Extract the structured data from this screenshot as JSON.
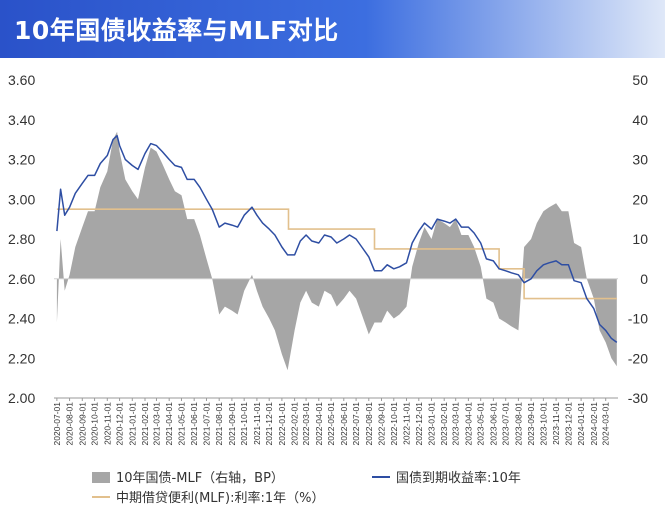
{
  "title": "10年国债收益率与MLF对比",
  "colors": {
    "title_bg": "#2f5cd6",
    "yield_line": "#2e4ea3",
    "mlf_line": "#e2c08d",
    "spread_area": "#a6a6a6"
  },
  "chart_data": {
    "type": "line",
    "title": "10年国债收益率与MLF对比",
    "y_left": {
      "min": 2.0,
      "max": 3.6,
      "ticks": [
        "2.00",
        "2.20",
        "2.40",
        "2.60",
        "2.80",
        "3.00",
        "3.20",
        "3.40",
        "3.60"
      ]
    },
    "y_right": {
      "min": -30,
      "max": 50,
      "ticks": [
        "-30",
        "-20",
        "-10",
        "0",
        "10",
        "20",
        "30",
        "40",
        "50"
      ]
    },
    "x_ticks": [
      "2020-07-01",
      "2020-08-01",
      "2020-09-01",
      "2020-10-01",
      "2020-11-01",
      "2020-12-01",
      "2021-01-01",
      "2021-02-01",
      "2021-03-01",
      "2021-04-01",
      "2021-05-01",
      "2021-06-01",
      "2021-07-01",
      "2021-08-01",
      "2021-09-01",
      "2021-10-01",
      "2021-11-01",
      "2021-12-01",
      "2022-01-01",
      "2022-02-01",
      "2022-03-01",
      "2022-04-01",
      "2022-05-01",
      "2022-06-01",
      "2022-07-01",
      "2022-08-01",
      "2022-09-01",
      "2022-10-01",
      "2022-11-01",
      "2022-12-01",
      "2023-01-01",
      "2023-02-01",
      "2023-03-01",
      "2023-04-01",
      "2023-05-01",
      "2023-06-01",
      "2023-07-01",
      "2023-08-01",
      "2023-09-01",
      "2023-10-01",
      "2023-11-01",
      "2023-12-01",
      "2024-01-01",
      "2024-02-01",
      "2024-03-01"
    ],
    "grid": false,
    "legend": [
      {
        "label": "10年国债-MLF（右轴，BP）",
        "kind": "area"
      },
      {
        "label": "国债到期收益率:10年",
        "kind": "line"
      },
      {
        "label": "中期借贷便利(MLF):利率:1年（%）",
        "kind": "line"
      }
    ],
    "legend_position": "bottom",
    "series": [
      {
        "name": "国债到期收益率:10年",
        "axis": "left",
        "style": "line",
        "x": [
          "2020-07-01",
          "2020-07-10",
          "2020-07-20",
          "2020-08-01",
          "2020-08-15",
          "2020-09-01",
          "2020-09-15",
          "2020-10-01",
          "2020-10-15",
          "2020-11-01",
          "2020-11-15",
          "2020-11-25",
          "2020-12-01",
          "2020-12-15",
          "2021-01-01",
          "2021-01-15",
          "2021-02-01",
          "2021-02-15",
          "2021-03-01",
          "2021-03-15",
          "2021-04-01",
          "2021-04-15",
          "2021-05-01",
          "2021-05-15",
          "2021-06-01",
          "2021-06-15",
          "2021-07-01",
          "2021-07-15",
          "2021-08-01",
          "2021-08-15",
          "2021-09-01",
          "2021-09-15",
          "2021-10-01",
          "2021-10-20",
          "2021-11-01",
          "2021-11-15",
          "2021-12-01",
          "2021-12-15",
          "2022-01-01",
          "2022-01-15",
          "2022-02-01",
          "2022-02-15",
          "2022-03-01",
          "2022-03-15",
          "2022-04-01",
          "2022-04-15",
          "2022-05-01",
          "2022-05-15",
          "2022-06-01",
          "2022-06-15",
          "2022-07-01",
          "2022-07-15",
          "2022-08-01",
          "2022-08-15",
          "2022-09-01",
          "2022-09-15",
          "2022-10-01",
          "2022-10-15",
          "2022-11-01",
          "2022-11-15",
          "2022-12-01",
          "2022-12-15",
          "2023-01-01",
          "2023-01-15",
          "2023-02-01",
          "2023-02-15",
          "2023-03-01",
          "2023-03-15",
          "2023-04-01",
          "2023-04-15",
          "2023-05-01",
          "2023-05-15",
          "2023-06-01",
          "2023-06-15",
          "2023-07-01",
          "2023-07-15",
          "2023-08-01",
          "2023-08-15",
          "2023-09-01",
          "2023-09-15",
          "2023-10-01",
          "2023-10-15",
          "2023-11-01",
          "2023-11-15",
          "2023-12-01",
          "2023-12-15",
          "2024-01-01",
          "2024-01-15",
          "2024-02-01",
          "2024-02-15",
          "2024-03-01",
          "2024-03-15",
          "2024-03-28"
        ],
        "y": [
          2.84,
          3.05,
          2.92,
          2.96,
          3.03,
          3.08,
          3.12,
          3.12,
          3.18,
          3.22,
          3.3,
          3.32,
          3.27,
          3.2,
          3.17,
          3.15,
          3.23,
          3.28,
          3.27,
          3.24,
          3.2,
          3.17,
          3.16,
          3.1,
          3.1,
          3.06,
          3.0,
          2.95,
          2.86,
          2.88,
          2.87,
          2.86,
          2.92,
          2.96,
          2.92,
          2.88,
          2.85,
          2.82,
          2.76,
          2.72,
          2.72,
          2.79,
          2.82,
          2.79,
          2.78,
          2.82,
          2.81,
          2.78,
          2.8,
          2.82,
          2.8,
          2.76,
          2.71,
          2.64,
          2.64,
          2.67,
          2.65,
          2.66,
          2.68,
          2.78,
          2.84,
          2.88,
          2.85,
          2.9,
          2.89,
          2.88,
          2.9,
          2.86,
          2.86,
          2.83,
          2.78,
          2.7,
          2.69,
          2.65,
          2.64,
          2.63,
          2.62,
          2.58,
          2.6,
          2.64,
          2.67,
          2.68,
          2.69,
          2.67,
          2.67,
          2.59,
          2.58,
          2.5,
          2.45,
          2.37,
          2.34,
          2.3,
          2.28
        ]
      },
      {
        "name": "中期借贷便利(MLF):利率:1年（%）",
        "axis": "left",
        "style": "step",
        "x": [
          "2020-07-01",
          "2022-01-17",
          "2022-08-15",
          "2023-06-15",
          "2023-08-15",
          "2024-03-28"
        ],
        "y": [
          2.95,
          2.85,
          2.75,
          2.65,
          2.5,
          2.5
        ]
      },
      {
        "name": "10年国债-MLF（右轴，BP）",
        "axis": "right",
        "style": "area",
        "x": [
          "2020-07-01",
          "2020-07-10",
          "2020-07-20",
          "2020-08-01",
          "2020-08-15",
          "2020-09-01",
          "2020-09-15",
          "2020-10-01",
          "2020-10-15",
          "2020-11-01",
          "2020-11-15",
          "2020-11-25",
          "2020-12-01",
          "2020-12-15",
          "2021-01-01",
          "2021-01-15",
          "2021-02-01",
          "2021-02-15",
          "2021-03-01",
          "2021-03-15",
          "2021-04-01",
          "2021-04-15",
          "2021-05-01",
          "2021-05-15",
          "2021-06-01",
          "2021-06-15",
          "2021-07-01",
          "2021-07-15",
          "2021-08-01",
          "2021-08-15",
          "2021-09-01",
          "2021-09-15",
          "2021-10-01",
          "2021-10-20",
          "2021-11-01",
          "2021-11-15",
          "2021-12-01",
          "2021-12-15",
          "2022-01-01",
          "2022-01-15",
          "2022-02-01",
          "2022-02-15",
          "2022-03-01",
          "2022-03-15",
          "2022-04-01",
          "2022-04-15",
          "2022-05-01",
          "2022-05-15",
          "2022-06-01",
          "2022-06-15",
          "2022-07-01",
          "2022-07-15",
          "2022-08-01",
          "2022-08-15",
          "2022-09-01",
          "2022-09-15",
          "2022-10-01",
          "2022-10-15",
          "2022-11-01",
          "2022-11-15",
          "2022-12-01",
          "2022-12-15",
          "2023-01-01",
          "2023-01-15",
          "2023-02-01",
          "2023-02-15",
          "2023-03-01",
          "2023-03-15",
          "2023-04-01",
          "2023-04-15",
          "2023-05-01",
          "2023-05-15",
          "2023-06-01",
          "2023-06-15",
          "2023-07-01",
          "2023-07-15",
          "2023-08-01",
          "2023-08-15",
          "2023-09-01",
          "2023-09-15",
          "2023-10-01",
          "2023-10-15",
          "2023-11-01",
          "2023-11-15",
          "2023-12-01",
          "2023-12-15",
          "2024-01-01",
          "2024-01-15",
          "2024-02-01",
          "2024-02-15",
          "2024-03-01",
          "2024-03-15",
          "2024-03-28"
        ],
        "y": [
          -11,
          10,
          -3,
          1,
          8,
          13,
          17,
          17,
          23,
          27,
          35,
          37,
          32,
          25,
          22,
          20,
          28,
          33,
          32,
          29,
          25,
          22,
          21,
          15,
          15,
          11,
          5,
          0,
          -9,
          -7,
          -8,
          -9,
          -3,
          1,
          -3,
          -7,
          -10,
          -13,
          -19,
          -23,
          -13,
          -6,
          -3,
          -6,
          -7,
          -3,
          -4,
          -7,
          -5,
          -3,
          -5,
          -9,
          -14,
          -11,
          -11,
          -8,
          -10,
          -9,
          -7,
          3,
          9,
          13,
          10,
          15,
          14,
          13,
          15,
          11,
          11,
          8,
          3,
          -5,
          -6,
          -10,
          -11,
          -12,
          -13,
          8,
          10,
          14,
          17,
          18,
          19,
          17,
          17,
          9,
          8,
          0,
          -5,
          -13,
          -16,
          -20,
          -22
        ]
      }
    ]
  }
}
